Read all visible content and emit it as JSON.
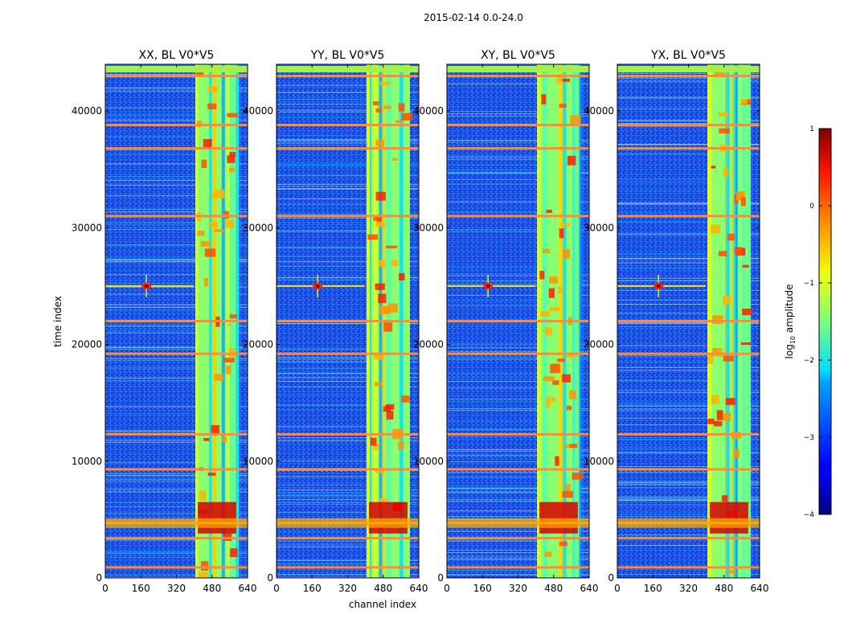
{
  "figure": {
    "suptitle": "2015-02-14 0.0-24.0",
    "xlabel": "channel index",
    "ylabel": "time index"
  },
  "chart_data": {
    "type": "heatmap",
    "x_range": [
      0,
      640
    ],
    "y_range": [
      0,
      44000
    ],
    "x_ticks": [
      0,
      160,
      320,
      480,
      640
    ],
    "y_ticks": [
      0,
      10000,
      20000,
      30000,
      40000
    ],
    "panels": [
      {
        "title": "XX, BL V0*V5",
        "pol": "XX"
      },
      {
        "title": "YY, BL V0*V5",
        "pol": "YY"
      },
      {
        "title": "XY, BL V0*V5",
        "pol": "XY"
      },
      {
        "title": "YX, BL V0*V5",
        "pol": "YX"
      }
    ],
    "features": {
      "rfi_channel_band": [
        405,
        600
      ],
      "flagged_time_rows": [
        900,
        3400,
        4700,
        9300,
        12300,
        19200,
        22000,
        31000,
        36800,
        38800,
        43000
      ],
      "point_source": {
        "channel": 185,
        "time": 25000
      }
    },
    "colorbar": {
      "label": "log",
      "label_sub": "10",
      "label_rest": " amplitude",
      "range": [
        -4,
        1
      ],
      "ticks": [
        {
          "value": 1,
          "label": "1"
        },
        {
          "value": 0,
          "label": "0"
        },
        {
          "value": -1,
          "label": "−1"
        },
        {
          "value": -2,
          "label": "−2"
        },
        {
          "value": -3,
          "label": "−3"
        },
        {
          "value": -4,
          "label": "−4"
        }
      ]
    }
  }
}
